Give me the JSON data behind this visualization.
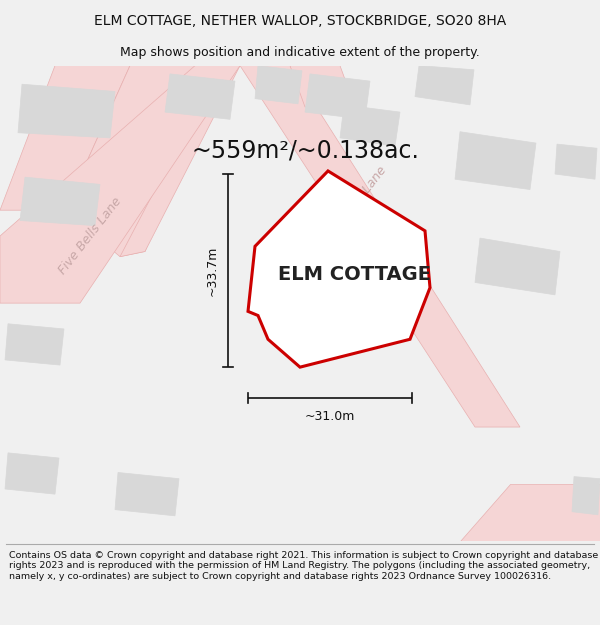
{
  "title_line1": "ELM COTTAGE, NETHER WALLOP, STOCKBRIDGE, SO20 8HA",
  "title_line2": "Map shows position and indicative extent of the property.",
  "area_text": "~559m²/~0.138ac.",
  "cottage_label": "ELM COTTAGE",
  "dim_vertical": "~33.7m",
  "dim_horizontal": "~31.0m",
  "road_label": "Five Bells Lane",
  "copyright_text": "Contains OS data © Crown copyright and database right 2021. This information is subject to Crown copyright and database rights 2023 and is reproduced with the permission of HM Land Registry. The polygons (including the associated geometry, namely x, y co-ordinates) are subject to Crown copyright and database rights 2023 Ordnance Survey 100026316.",
  "bg_color": "#f0f0f0",
  "map_bg": "#f0f0f0",
  "plot_fill": "#ffffff",
  "plot_edge": "#cc0000",
  "road_fill": "#f5d5d5",
  "road_stroke": "#e8b0b0",
  "building_fill": "#d8d8d8",
  "building_stroke": "#d8d8d8",
  "title_fontsize": 10,
  "subtitle_fontsize": 9,
  "area_fontsize": 17,
  "label_fontsize": 14,
  "dim_fontsize": 9,
  "road_label_fontsize": 9,
  "footer_fontsize": 6.8
}
